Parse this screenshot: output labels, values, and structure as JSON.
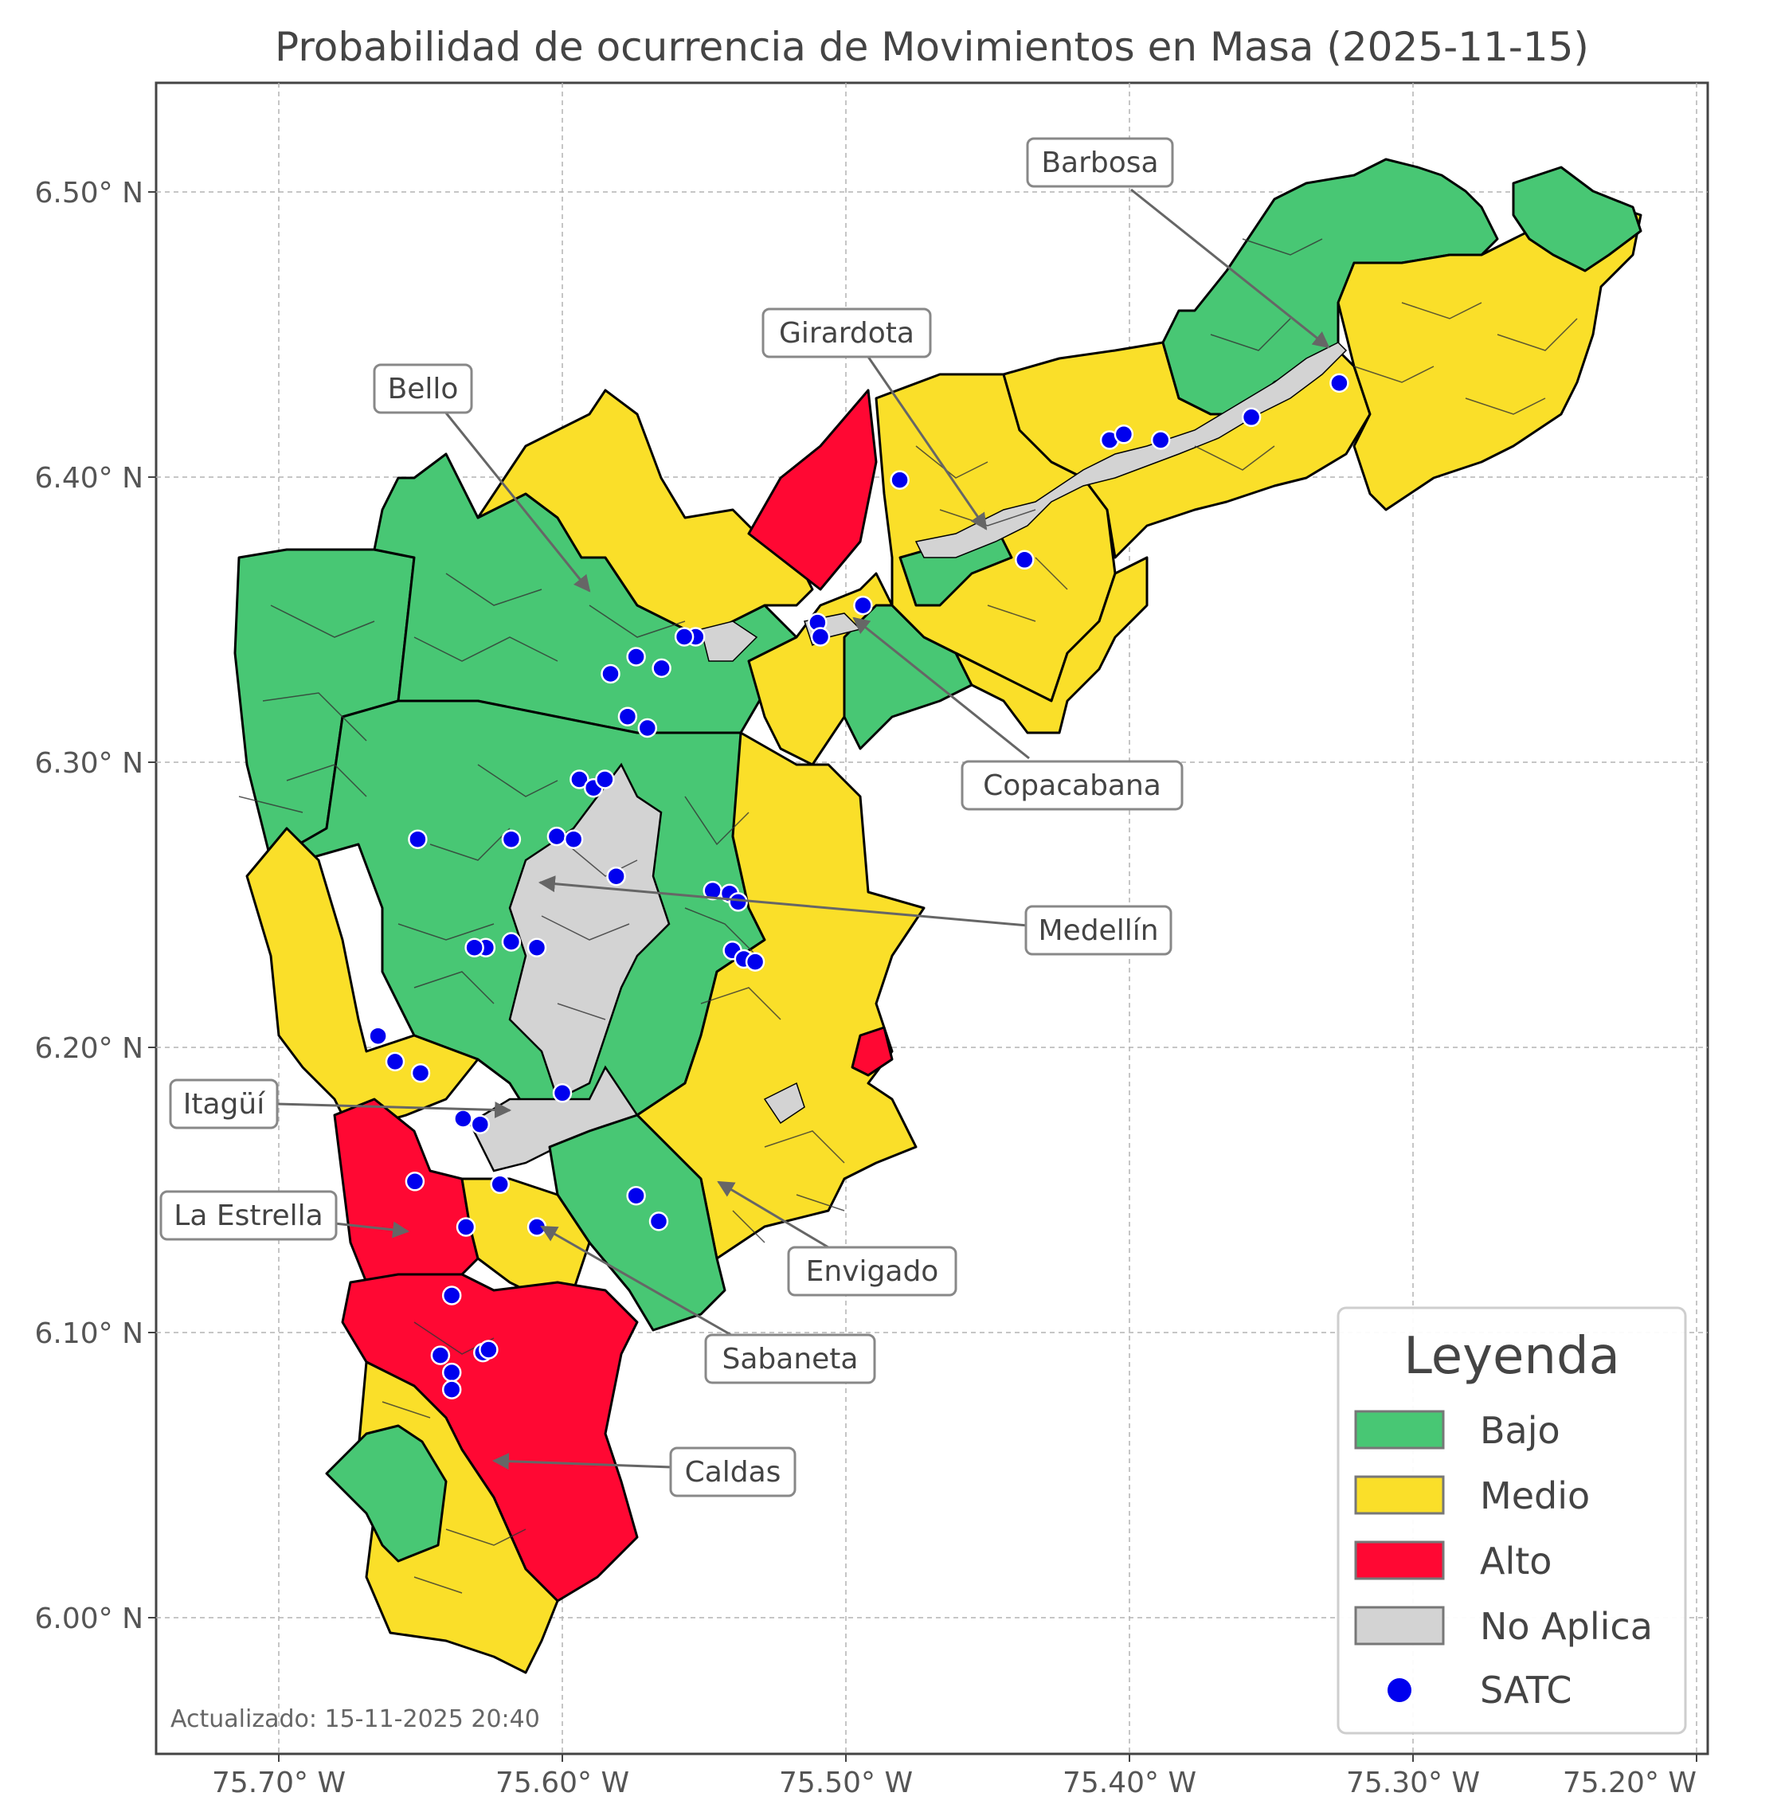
{
  "title": "Probabilidad de ocurrencia de Movimientos en Masa (2025-11-15)",
  "colors": {
    "bajo": "#48c774",
    "medio": "#fadf29",
    "alto": "#ff0833",
    "no_aplica": "#d3d3d3",
    "satc": "#0000ee"
  },
  "axes": {
    "y_ticks": [
      "6.00° N",
      "6.10° N",
      "6.20° N",
      "6.30° N",
      "6.40° N",
      "6.50° N"
    ],
    "x_ticks": [
      "75.70° W",
      "75.60° W",
      "75.50° W",
      "75.40° W",
      "75.30° W",
      "75.20° W"
    ]
  },
  "callouts": [
    {
      "label": "Barbosa"
    },
    {
      "label": "Girardota"
    },
    {
      "label": "Bello"
    },
    {
      "label": "Copacabana"
    },
    {
      "label": "Medellín"
    },
    {
      "label": "Itagüí"
    },
    {
      "label": "La Estrella"
    },
    {
      "label": "Envigado"
    },
    {
      "label": "Sabaneta"
    },
    {
      "label": "Caldas"
    }
  ],
  "legend": {
    "title": "Leyenda",
    "items": [
      {
        "label": "Bajo",
        "color": "#48c774"
      },
      {
        "label": "Medio",
        "color": "#fadf29"
      },
      {
        "label": "Alto",
        "color": "#ff0833"
      },
      {
        "label": "No Aplica",
        "color": "#d3d3d3"
      },
      {
        "label": "SATC",
        "color": "#0000ee"
      }
    ]
  },
  "satc_stations": [
    {
      "lon": -75.553,
      "lat": 6.344
    },
    {
      "lon": -75.557,
      "lat": 6.344
    },
    {
      "lon": -75.574,
      "lat": 6.337
    },
    {
      "lon": -75.583,
      "lat": 6.331
    },
    {
      "lon": -75.565,
      "lat": 6.333
    },
    {
      "lon": -75.577,
      "lat": 6.316
    },
    {
      "lon": -75.57,
      "lat": 6.312
    },
    {
      "lon": -75.594,
      "lat": 6.294
    },
    {
      "lon": -75.589,
      "lat": 6.291
    },
    {
      "lon": -75.585,
      "lat": 6.294
    },
    {
      "lon": -75.651,
      "lat": 6.273
    },
    {
      "lon": -75.618,
      "lat": 6.273
    },
    {
      "lon": -75.602,
      "lat": 6.274
    },
    {
      "lon": -75.596,
      "lat": 6.273
    },
    {
      "lon": -75.581,
      "lat": 6.26
    },
    {
      "lon": -75.547,
      "lat": 6.255
    },
    {
      "lon": -75.541,
      "lat": 6.254
    },
    {
      "lon": -75.538,
      "lat": 6.251
    },
    {
      "lon": -75.54,
      "lat": 6.234
    },
    {
      "lon": -75.536,
      "lat": 6.231
    },
    {
      "lon": -75.532,
      "lat": 6.23
    },
    {
      "lon": -75.618,
      "lat": 6.237
    },
    {
      "lon": -75.627,
      "lat": 6.235
    },
    {
      "lon": -75.631,
      "lat": 6.235
    },
    {
      "lon": -75.609,
      "lat": 6.235
    },
    {
      "lon": -75.665,
      "lat": 6.204
    },
    {
      "lon": -75.659,
      "lat": 6.195
    },
    {
      "lon": -75.65,
      "lat": 6.191
    },
    {
      "lon": -75.635,
      "lat": 6.175
    },
    {
      "lon": -75.629,
      "lat": 6.173
    },
    {
      "lon": -75.6,
      "lat": 6.184
    },
    {
      "lon": -75.652,
      "lat": 6.153
    },
    {
      "lon": -75.622,
      "lat": 6.152
    },
    {
      "lon": -75.574,
      "lat": 6.148
    },
    {
      "lon": -75.566,
      "lat": 6.139
    },
    {
      "lon": -75.634,
      "lat": 6.137
    },
    {
      "lon": -75.609,
      "lat": 6.137
    },
    {
      "lon": -75.639,
      "lat": 6.113
    },
    {
      "lon": -75.643,
      "lat": 6.092
    },
    {
      "lon": -75.628,
      "lat": 6.093
    },
    {
      "lon": -75.626,
      "lat": 6.094
    },
    {
      "lon": -75.639,
      "lat": 6.086
    },
    {
      "lon": -75.639,
      "lat": 6.08
    },
    {
      "lon": -75.51,
      "lat": 6.349
    },
    {
      "lon": -75.509,
      "lat": 6.344
    },
    {
      "lon": -75.494,
      "lat": 6.355
    },
    {
      "lon": -75.481,
      "lat": 6.399
    },
    {
      "lon": -75.437,
      "lat": 6.371
    },
    {
      "lon": -75.407,
      "lat": 6.413
    },
    {
      "lon": -75.402,
      "lat": 6.415
    },
    {
      "lon": -75.389,
      "lat": 6.413
    },
    {
      "lon": -75.357,
      "lat": 6.421
    },
    {
      "lon": -75.326,
      "lat": 6.433
    }
  ],
  "updated": "Actualizado: 15-11-2025 20:40"
}
